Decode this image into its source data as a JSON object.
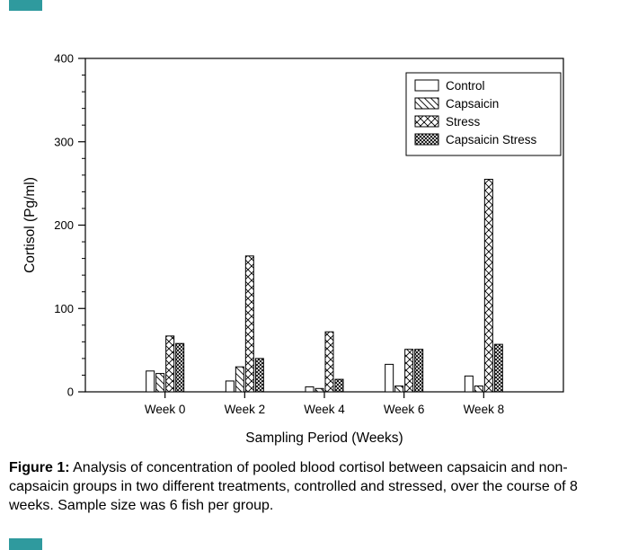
{
  "decor": {
    "edge_strip_color": "#2f9a9e"
  },
  "caption": {
    "label": "Figure 1:",
    "text": " Analysis of concentration of pooled blood cortisol between capsaicin and non-capsaicin groups in two different treatments, controlled and stressed, over the course of 8 weeks. Sample size was 6 fish per group."
  },
  "chart_data": {
    "type": "bar",
    "title": "",
    "xlabel": "Sampling Period (Weeks)",
    "ylabel": "Cortisol (Pg/ml)",
    "ylim": [
      0,
      400
    ],
    "yticks": [
      0,
      100,
      200,
      300,
      400
    ],
    "yminor_step": 20,
    "grid": false,
    "legend_position": "upper right",
    "categories": [
      "Week 0",
      "Week 2",
      "Week 4",
      "Week 6",
      "Week 8"
    ],
    "series": [
      {
        "name": "Control",
        "pattern": "plain",
        "values": [
          25,
          13,
          6,
          33,
          19
        ]
      },
      {
        "name": "Capsaicin",
        "pattern": "diagonal",
        "values": [
          22,
          30,
          4,
          7,
          7
        ]
      },
      {
        "name": "Stress",
        "pattern": "crosshatch",
        "values": [
          67,
          163,
          72,
          51,
          255
        ]
      },
      {
        "name": "Capsaicin Stress",
        "pattern": "dense-crosshatch",
        "values": [
          58,
          40,
          15,
          51,
          57
        ]
      }
    ]
  }
}
